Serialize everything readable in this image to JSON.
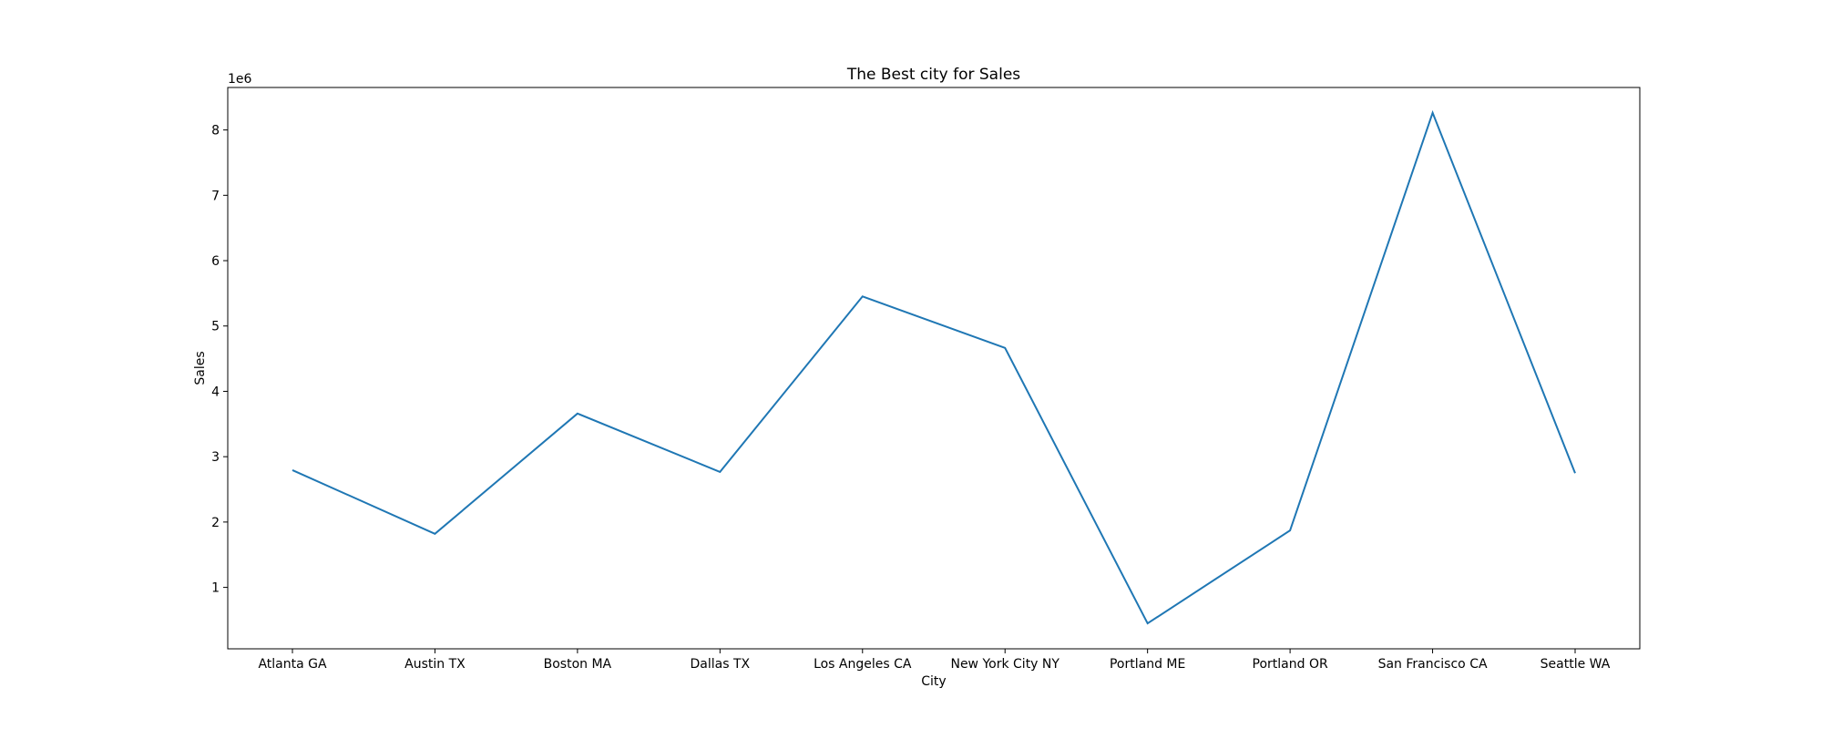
{
  "chart_data": {
    "type": "line",
    "title": "The Best city for Sales",
    "xlabel": "City",
    "ylabel": "Sales",
    "y_multiplier_label": "1e6",
    "categories": [
      "Atlanta GA",
      "Austin TX",
      "Boston MA",
      "Dallas TX",
      "Los Angeles CA",
      "New York City NY",
      "Portland ME",
      "Portland OR",
      "San Francisco CA",
      "Seattle WA"
    ],
    "series": [
      {
        "values": [
          2795000,
          1820000,
          3661000,
          2767000,
          5452000,
          4665000,
          449000,
          1871000,
          8262000,
          2747000
        ]
      }
    ],
    "yticks": [
      1,
      2,
      3,
      4,
      5,
      6,
      7,
      8
    ],
    "ylim": [
      60000,
      8650000
    ],
    "grid": false,
    "line_color": "#1f77b4"
  }
}
